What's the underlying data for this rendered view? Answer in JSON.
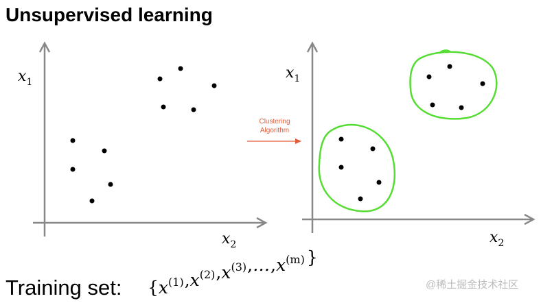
{
  "header": {
    "title": "Unsupervised learning"
  },
  "left_plot": {
    "y_axis_label": {
      "base": "x",
      "sub": "1"
    },
    "x_axis_label": {
      "base": "x",
      "sub": "2"
    }
  },
  "arrow": {
    "label_lines": [
      "Clustering",
      "Algorithm"
    ]
  },
  "right_plot": {
    "y_axis_label": {
      "base": "x",
      "sub": "1"
    },
    "x_axis_label": {
      "base": "x",
      "sub": "2"
    }
  },
  "footer": {
    "label": "Training set:",
    "formula": {
      "open": "{",
      "separator": ",",
      "close": "}",
      "terms": [
        {
          "base": "x",
          "sup": "(1)"
        },
        {
          "base": "x",
          "sup": "(2)"
        },
        {
          "base": "x",
          "sup": "(3)"
        },
        {
          "base": "…"
        },
        {
          "base": "x",
          "sup": "(m)"
        }
      ]
    }
  },
  "watermark": "@稀土掘金技术社区"
}
